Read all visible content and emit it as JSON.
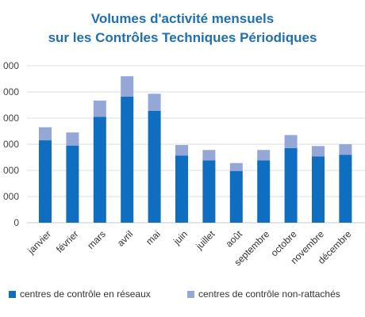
{
  "chart_data": {
    "type": "bar",
    "stacked": true,
    "title_lines": [
      "Volumes d'activité mensuels",
      "sur les Contrôles Techniques Périodiques"
    ],
    "categories": [
      "janvier",
      "février",
      "mars",
      "avril",
      "mai",
      "juin",
      "juillet",
      "août",
      "septembre",
      "octobre",
      "novembre",
      "décembre"
    ],
    "ytick_labels": [
      "0",
      "000",
      "000",
      "000",
      "000",
      "000",
      "000"
    ],
    "ylim": [
      0,
      6
    ],
    "grid": true,
    "legend_position": "bottom",
    "series": [
      {
        "name": "centres de contrôle en réseaux",
        "color": "#0f6ebf",
        "values": [
          3.15,
          2.95,
          4.05,
          4.82,
          4.28,
          2.57,
          2.38,
          1.98,
          2.38,
          2.85,
          2.53,
          2.6
        ]
      },
      {
        "name": "centres de contrôle non-rattachés",
        "color": "#94a7d6",
        "values": [
          0.5,
          0.5,
          0.62,
          0.78,
          0.65,
          0.4,
          0.4,
          0.3,
          0.4,
          0.5,
          0.4,
          0.4
        ]
      }
    ]
  }
}
